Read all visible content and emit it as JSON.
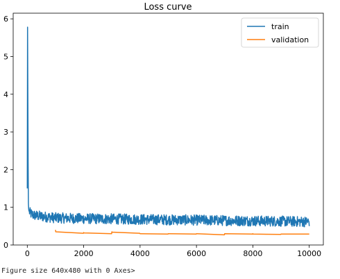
{
  "chart_data": {
    "type": "line",
    "title": "Loss curve",
    "xlabel": "",
    "ylabel": "",
    "xlim": [
      -500,
      10500
    ],
    "ylim": [
      0,
      6.15
    ],
    "xticks": [
      0,
      2000,
      4000,
      6000,
      8000,
      10000
    ],
    "yticks": [
      0,
      1,
      2,
      3,
      4,
      5,
      6
    ],
    "grid": false,
    "legend": "top-right",
    "series": [
      {
        "name": "train",
        "color": "#1f77b4",
        "points_x": [
          0,
          10,
          20,
          30,
          40,
          50,
          60,
          80,
          100,
          150,
          200,
          300,
          500,
          750,
          1000,
          2000,
          3000,
          4000,
          5000,
          6000,
          7000,
          8000,
          9000,
          9800,
          10000
        ],
        "points_y": [
          1.5,
          5.78,
          4.0,
          2.2,
          1.1,
          0.95,
          0.9,
          0.88,
          0.85,
          0.82,
          0.8,
          0.78,
          0.76,
          0.74,
          0.72,
          0.7,
          0.69,
          0.68,
          0.67,
          0.66,
          0.65,
          0.64,
          0.63,
          0.62,
          0.62
        ],
        "noise": 0.14
      },
      {
        "name": "validation",
        "color": "#ff7f0e",
        "x": [
          1000,
          1010,
          1990,
          2000,
          2010,
          2990,
          3000,
          3010,
          3990,
          4000,
          4010,
          4990,
          5000,
          5010,
          5990,
          6000,
          6010,
          6990,
          7000,
          7010,
          7990,
          8000,
          8010,
          8990,
          9000,
          9010,
          10000
        ],
        "y": [
          0.4,
          0.35,
          0.31,
          0.33,
          0.32,
          0.3,
          0.35,
          0.34,
          0.31,
          0.3,
          0.3,
          0.29,
          0.3,
          0.3,
          0.29,
          0.3,
          0.3,
          0.27,
          0.3,
          0.3,
          0.29,
          0.3,
          0.29,
          0.28,
          0.29,
          0.29,
          0.29
        ]
      }
    ]
  },
  "caption": "Figure size 640x480 with 0 Axes>"
}
